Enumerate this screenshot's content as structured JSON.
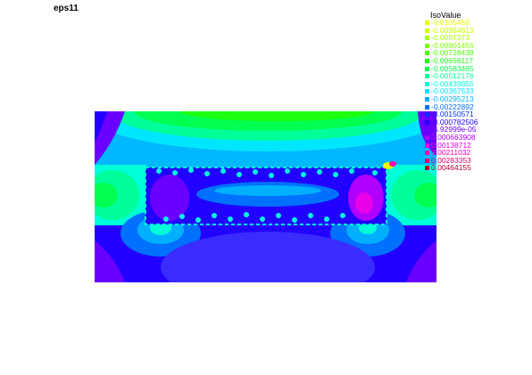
{
  "title": "eps11",
  "legend": {
    "title": "IsoValue",
    "entries": [
      {
        "label": "-0.0105459",
        "color": "#e8ff00"
      },
      {
        "label": "-0.00984613",
        "color": "#ccff00"
      },
      {
        "label": "-0.0087373",
        "color": "#a8ff00"
      },
      {
        "label": "-0.00801455",
        "color": "#7cff00"
      },
      {
        "label": "-0.00728439",
        "color": "#4cff00"
      },
      {
        "label": "-0.00656117",
        "color": "#1cff10"
      },
      {
        "label": "-0.00583485",
        "color": "#00ff50"
      },
      {
        "label": "-0.00512176",
        "color": "#00ff9a"
      },
      {
        "label": "-0.00439855",
        "color": "#00ffd8"
      },
      {
        "label": "-0.00367533",
        "color": "#00e6ff"
      },
      {
        "label": "-0.00295213",
        "color": "#00b0ff"
      },
      {
        "label": "-0.00222892",
        "color": "#0070ff"
      },
      {
        "label": "-0.00150571",
        "color": "#0030ff"
      },
      {
        "label": "-0.000782506",
        "color": "#2200ff"
      },
      {
        "label": "-5.92999e-05",
        "color": "#6a00ff"
      },
      {
        "label": "0.000663908",
        "color": "#b000ff"
      },
      {
        "label": "0.00138712",
        "color": "#e800e8"
      },
      {
        "label": "0.00211032",
        "color": "#ff00b4"
      },
      {
        "label": "0.00283353",
        "color": "#e0006a"
      },
      {
        "label": "0.00464155",
        "color": "#b00030"
      }
    ]
  }
}
